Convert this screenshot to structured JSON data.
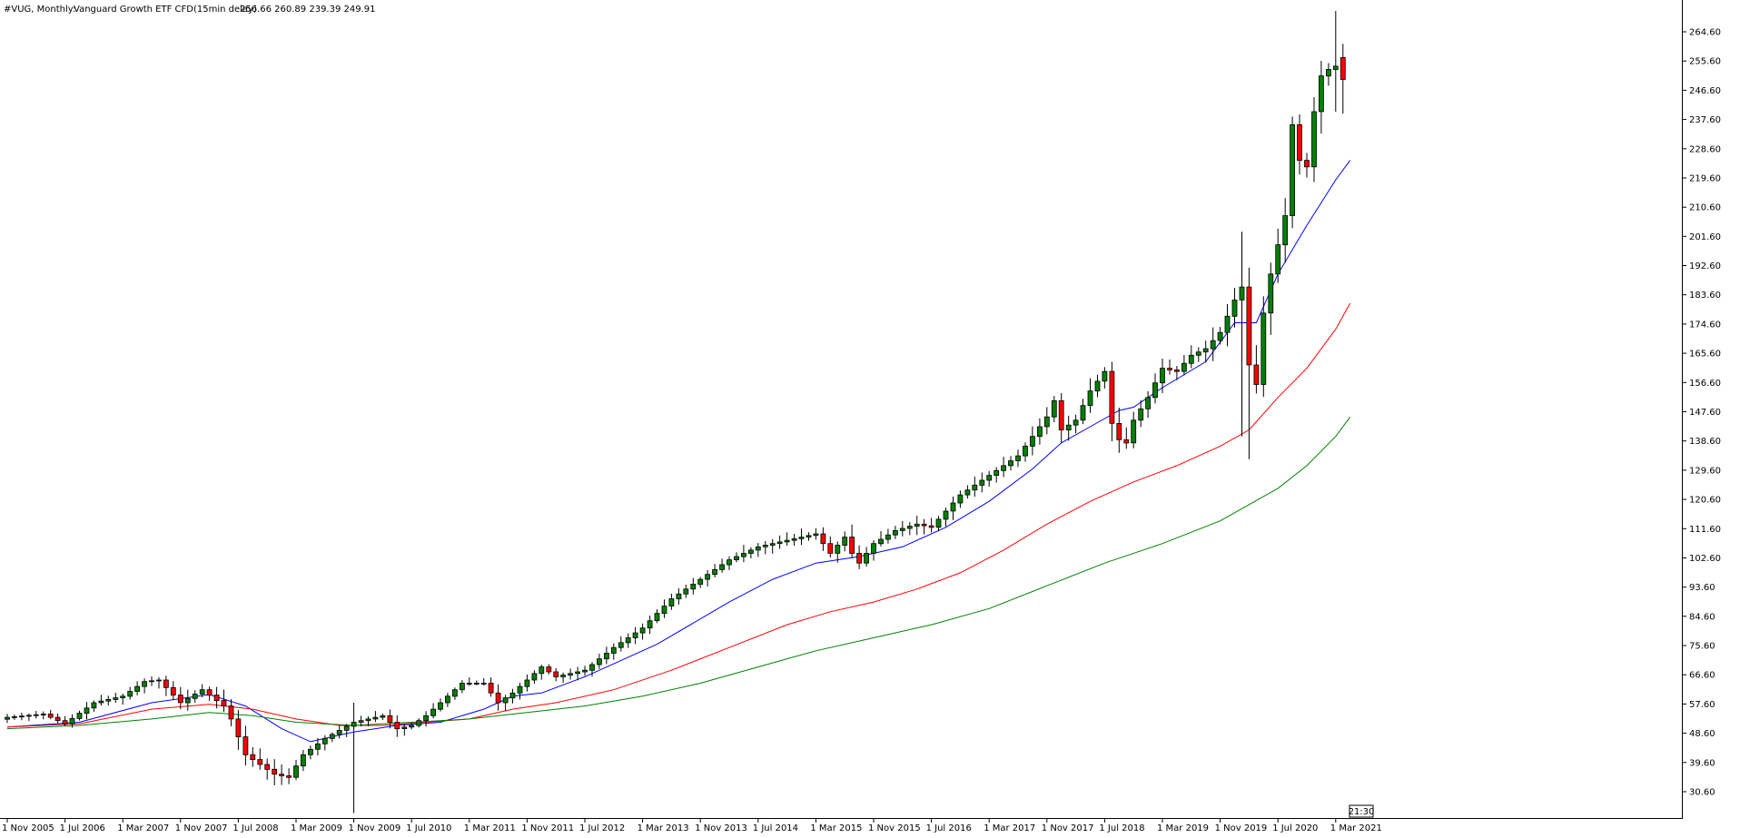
{
  "header": {
    "symbol_period": "#VUG, Monthly:",
    "description": "Vanguard Growth ETF CFD(15min delay)",
    "ohlc": "256.66 260.89 239.39 249.91"
  },
  "time_marker": "21:30",
  "colors": {
    "bull": "#008000",
    "bear": "#ff0000",
    "wick": "#000000",
    "ma_fast": "#0000ff",
    "ma_mid": "#ff0000",
    "ma_slow": "#008000",
    "axis": "#000000",
    "background": "#ffffff"
  },
  "chart_data": {
    "type": "candlestick",
    "symbol": "#VUG",
    "timeframe": "Monthly",
    "ylim": [
      24,
      272
    ],
    "xlim": [
      0,
      186
    ],
    "grid": false,
    "y_ticks": [
      "264.60",
      "255.60",
      "246.60",
      "237.60",
      "228.60",
      "219.60",
      "210.60",
      "201.60",
      "192.60",
      "183.60",
      "174.60",
      "165.60",
      "156.60",
      "147.60",
      "138.60",
      "129.60",
      "120.60",
      "111.60",
      "102.60",
      "93.60",
      "84.60",
      "75.60",
      "66.60",
      "57.60",
      "48.60",
      "39.60",
      "30.60"
    ],
    "x_ticks": [
      {
        "label": "1 Nov 2005",
        "index": 0
      },
      {
        "label": "1 Jul 2006",
        "index": 8
      },
      {
        "label": "1 Mar 2007",
        "index": 16
      },
      {
        "label": "1 Nov 2007",
        "index": 24
      },
      {
        "label": "1 Jul 2008",
        "index": 32
      },
      {
        "label": "1 Mar 2009",
        "index": 40
      },
      {
        "label": "1 Nov 2009",
        "index": 48
      },
      {
        "label": "1 Jul 2010",
        "index": 56
      },
      {
        "label": "1 Mar 2011",
        "index": 64
      },
      {
        "label": "1 Nov 2011",
        "index": 72
      },
      {
        "label": "1 Jul 2012",
        "index": 80
      },
      {
        "label": "1 Mar 2013",
        "index": 88
      },
      {
        "label": "1 Nov 2013",
        "index": 96
      },
      {
        "label": "1 Jul 2014",
        "index": 104
      },
      {
        "label": "1 Mar 2015",
        "index": 112
      },
      {
        "label": "1 Nov 2015",
        "index": 120
      },
      {
        "label": "1 Jul 2016",
        "index": 128
      },
      {
        "label": "1 Mar 2017",
        "index": 136
      },
      {
        "label": "1 Nov 2017",
        "index": 144
      },
      {
        "label": "1 Jul 2018",
        "index": 152
      },
      {
        "label": "1 Mar 2019",
        "index": 160
      },
      {
        "label": "1 Nov 2019",
        "index": 168
      },
      {
        "label": "1 Jul 2020",
        "index": 176
      },
      {
        "label": "1 Mar 2021",
        "index": 184
      }
    ],
    "keypoints": [
      [
        0,
        53.5,
        1.2
      ],
      [
        5,
        54.5,
        1.2
      ],
      [
        8,
        51.5,
        1.3
      ],
      [
        12,
        58,
        1.4
      ],
      [
        16,
        60,
        1.5
      ],
      [
        19,
        64.5,
        1.8
      ],
      [
        21,
        65,
        1.8
      ],
      [
        24,
        58,
        2.5
      ],
      [
        27,
        62,
        2.0
      ],
      [
        30,
        57,
        2.5
      ],
      [
        31,
        53,
        2.5
      ],
      [
        33,
        42,
        4.0
      ],
      [
        35,
        39,
        3.0
      ],
      [
        37,
        36,
        2.5
      ],
      [
        39,
        35,
        2.0
      ],
      [
        41,
        42,
        2.0
      ],
      [
        44,
        47,
        1.5
      ],
      [
        48,
        52,
        1.5
      ],
      [
        52,
        54,
        1.5
      ],
      [
        54,
        50,
        2.0
      ],
      [
        56,
        51,
        1.5
      ],
      [
        58,
        54,
        1.5
      ],
      [
        61,
        60,
        1.5
      ],
      [
        63,
        64,
        1.5
      ],
      [
        66,
        64,
        1.5
      ],
      [
        68,
        58,
        3.0
      ],
      [
        70,
        61,
        1.5
      ],
      [
        74,
        69,
        1.5
      ],
      [
        76,
        66,
        2.0
      ],
      [
        80,
        68,
        1.5
      ],
      [
        84,
        75,
        1.5
      ],
      [
        88,
        81,
        1.5
      ],
      [
        92,
        90,
        1.5
      ],
      [
        96,
        96,
        1.5
      ],
      [
        100,
        102,
        1.8
      ],
      [
        104,
        106,
        2.0
      ],
      [
        108,
        108,
        2.0
      ],
      [
        112,
        110,
        2.0
      ],
      [
        114,
        104,
        3.0
      ],
      [
        116,
        109,
        2.0
      ],
      [
        117,
        104,
        3.0
      ],
      [
        118,
        101,
        3.0
      ],
      [
        120,
        107,
        2.0
      ],
      [
        123,
        111,
        2.0
      ],
      [
        126,
        113,
        2.0
      ],
      [
        128,
        112,
        2.0
      ],
      [
        130,
        117,
        2.0
      ],
      [
        132,
        122,
        2.0
      ],
      [
        136,
        128,
        2.0
      ],
      [
        140,
        134,
        2.0
      ],
      [
        144,
        146,
        3.0
      ],
      [
        145,
        151,
        3.0
      ],
      [
        146,
        142,
        3.0
      ],
      [
        148,
        145,
        2.0
      ],
      [
        150,
        154,
        3.0
      ],
      [
        152,
        160,
        3.0
      ],
      [
        153,
        144,
        4.0
      ],
      [
        154,
        139,
        4.0
      ],
      [
        155,
        138,
        4.0
      ],
      [
        156,
        145,
        3.0
      ],
      [
        158,
        152,
        3.0
      ],
      [
        160,
        161,
        3.0
      ],
      [
        162,
        160,
        3.0
      ],
      [
        164,
        165,
        3.0
      ],
      [
        166,
        167,
        3.0
      ],
      [
        168,
        172,
        3.0
      ],
      [
        170,
        182,
        3.0
      ],
      [
        171,
        186,
        3.0
      ],
      [
        172,
        162,
        6.0
      ],
      [
        173,
        156,
        6.0
      ],
      [
        174,
        178,
        5.0
      ],
      [
        175,
        190,
        5.0
      ],
      [
        177,
        208,
        5.0
      ],
      [
        178,
        236,
        6.0
      ],
      [
        179,
        225,
        6.0
      ],
      [
        180,
        223,
        5.0
      ],
      [
        181,
        240,
        5.0
      ],
      [
        182,
        251,
        5.0
      ],
      [
        183,
        253,
        4.0
      ],
      [
        184,
        254,
        4.0
      ],
      [
        185,
        250,
        5.0
      ]
    ],
    "special_wicks": [
      {
        "index": 48,
        "low": 24,
        "high": 58
      },
      {
        "index": 171,
        "low": 140,
        "high": 203
      },
      {
        "index": 172,
        "low": 133,
        "high": 192
      },
      {
        "index": 184,
        "low": 240,
        "high": 271
      }
    ],
    "last_candle": {
      "open": 256.66,
      "high": 260.89,
      "low": 239.39,
      "close": 249.91
    },
    "moving_averages": [
      {
        "color": "#0000ff",
        "period": 12,
        "points": [
          [
            0,
            50.5
          ],
          [
            10,
            52
          ],
          [
            20,
            58
          ],
          [
            28,
            60.5
          ],
          [
            33,
            57
          ],
          [
            38,
            50
          ],
          [
            42,
            46
          ],
          [
            48,
            49
          ],
          [
            54,
            51
          ],
          [
            60,
            52
          ],
          [
            66,
            56
          ],
          [
            70,
            60
          ],
          [
            74,
            61
          ],
          [
            80,
            66
          ],
          [
            90,
            76
          ],
          [
            100,
            89
          ],
          [
            106,
            96
          ],
          [
            112,
            101
          ],
          [
            118,
            103
          ],
          [
            124,
            106
          ],
          [
            130,
            112
          ],
          [
            136,
            120
          ],
          [
            142,
            130
          ],
          [
            146,
            138
          ],
          [
            150,
            143
          ],
          [
            154,
            148
          ],
          [
            156,
            149
          ],
          [
            160,
            155
          ],
          [
            166,
            163
          ],
          [
            170,
            175
          ],
          [
            173,
            175
          ],
          [
            176,
            190
          ],
          [
            180,
            205
          ],
          [
            184,
            219
          ],
          [
            186,
            225
          ]
        ]
      },
      {
        "color": "#ff0000",
        "period": 24,
        "points": [
          [
            0,
            50.5
          ],
          [
            10,
            51.5
          ],
          [
            20,
            56
          ],
          [
            28,
            57.5
          ],
          [
            34,
            56
          ],
          [
            40,
            53
          ],
          [
            46,
            51
          ],
          [
            52,
            51
          ],
          [
            58,
            52
          ],
          [
            64,
            53
          ],
          [
            70,
            56
          ],
          [
            76,
            58
          ],
          [
            84,
            62
          ],
          [
            92,
            68
          ],
          [
            100,
            75
          ],
          [
            108,
            82
          ],
          [
            114,
            86
          ],
          [
            120,
            89
          ],
          [
            126,
            93
          ],
          [
            132,
            98
          ],
          [
            138,
            105
          ],
          [
            144,
            113
          ],
          [
            150,
            120
          ],
          [
            156,
            126
          ],
          [
            162,
            131
          ],
          [
            168,
            137
          ],
          [
            172,
            142
          ],
          [
            176,
            152
          ],
          [
            180,
            161
          ],
          [
            184,
            173
          ],
          [
            186,
            181
          ]
        ]
      },
      {
        "color": "#008000",
        "period": 48,
        "points": [
          [
            0,
            50
          ],
          [
            10,
            51
          ],
          [
            20,
            53
          ],
          [
            28,
            55
          ],
          [
            34,
            54
          ],
          [
            40,
            52
          ],
          [
            48,
            51
          ],
          [
            56,
            52
          ],
          [
            64,
            53
          ],
          [
            72,
            55
          ],
          [
            80,
            57
          ],
          [
            88,
            60
          ],
          [
            96,
            64
          ],
          [
            104,
            69
          ],
          [
            112,
            74
          ],
          [
            120,
            78
          ],
          [
            128,
            82
          ],
          [
            136,
            87
          ],
          [
            144,
            94
          ],
          [
            152,
            101
          ],
          [
            160,
            107
          ],
          [
            168,
            114
          ],
          [
            172,
            119
          ],
          [
            176,
            124
          ],
          [
            180,
            131
          ],
          [
            184,
            140
          ],
          [
            186,
            146
          ]
        ]
      }
    ]
  }
}
